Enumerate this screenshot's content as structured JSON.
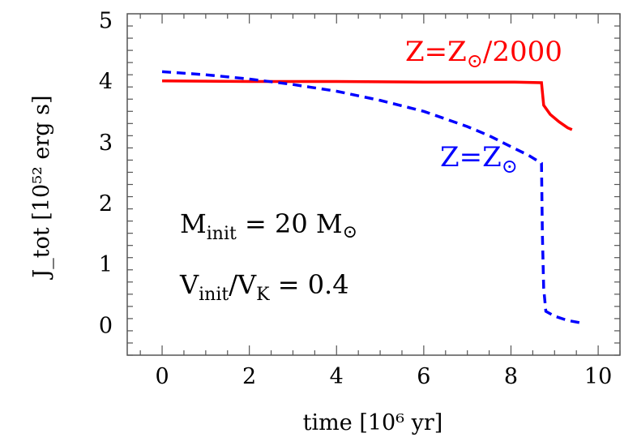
{
  "chart_data": {
    "type": "line",
    "xlabel": "time [10⁶ yr]",
    "ylabel": "J_tot [10⁵² erg s]",
    "xlim": [
      -0.8,
      10.5
    ],
    "ylim": [
      -0.5,
      5.1
    ],
    "xticks": [
      0,
      2,
      4,
      6,
      8,
      10
    ],
    "yticks": [
      0,
      1,
      2,
      3,
      4,
      5
    ],
    "grid": false,
    "series": [
      {
        "name": "Z=Z☉/2000",
        "color": "#ff0000",
        "style": "solid",
        "x": [
          0,
          2,
          4,
          6,
          8,
          8.7,
          8.75,
          8.9,
          9.1,
          9.3,
          9.4
        ],
        "y": [
          4.0,
          3.99,
          3.99,
          3.98,
          3.98,
          3.97,
          3.6,
          3.45,
          3.33,
          3.23,
          3.2
        ]
      },
      {
        "name": "Z=Z☉",
        "color": "#0000ff",
        "style": "dashed",
        "x": [
          0,
          1,
          2,
          3,
          4,
          5,
          6,
          7,
          7.5,
          8,
          8.4,
          8.7,
          8.72,
          8.75,
          8.8,
          9.0,
          9.3,
          9.6
        ],
        "y": [
          4.15,
          4.1,
          4.03,
          3.94,
          3.83,
          3.68,
          3.5,
          3.25,
          3.1,
          2.92,
          2.78,
          2.65,
          1.5,
          0.6,
          0.22,
          0.14,
          0.07,
          0.03
        ]
      }
    ],
    "annotations": {
      "red_label": {
        "main": "Z=Z",
        "sub": "⊙",
        "rest": "/2000"
      },
      "blue_label": {
        "main": "Z=Z",
        "sub": "⊙"
      },
      "mass": {
        "main": "M",
        "sub": "init",
        "rest": " = 20 M",
        "sym": "⊙"
      },
      "vel": {
        "main": "V",
        "sub": "init",
        "mid": "/V",
        "sub2": "K",
        "rest": " = 0.4"
      }
    }
  }
}
